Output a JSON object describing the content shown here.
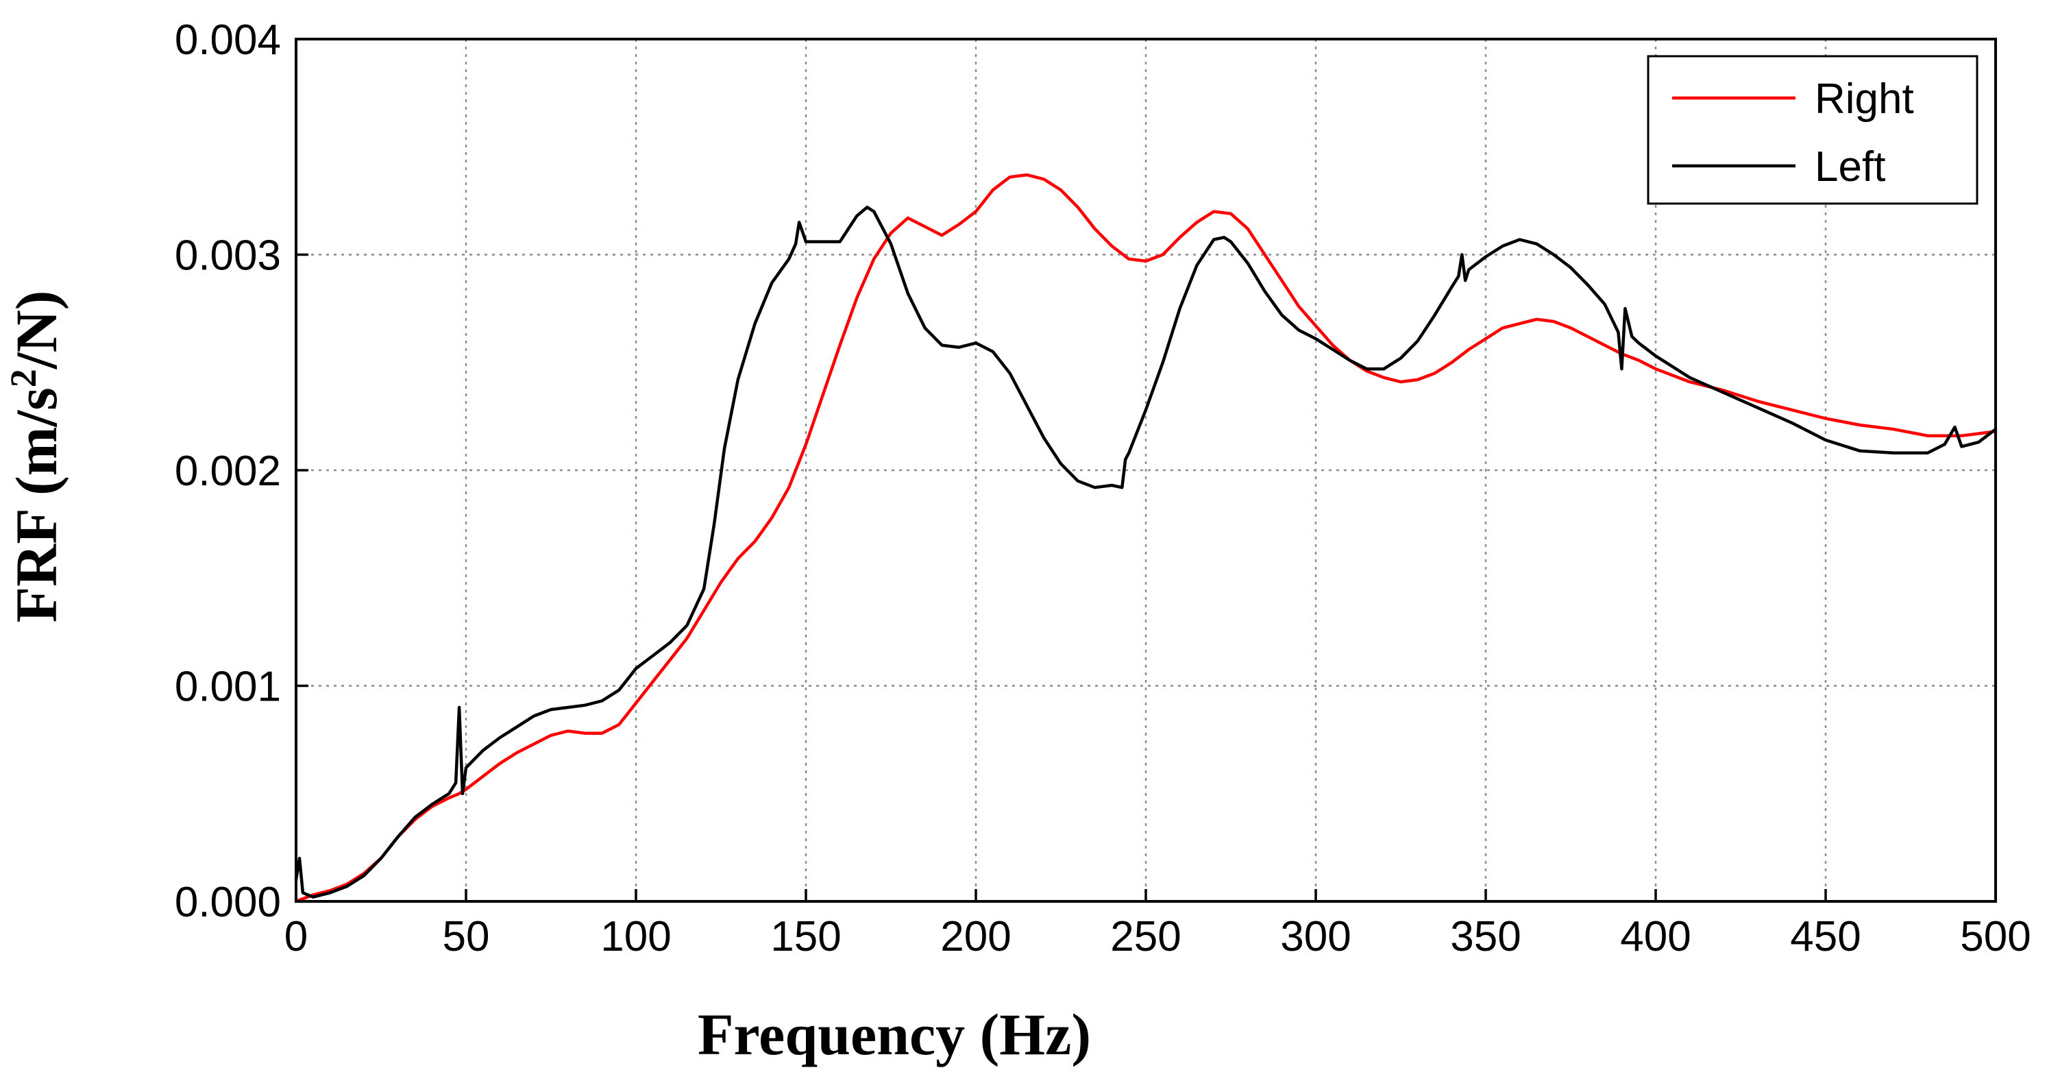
{
  "chart_data": {
    "type": "line",
    "title": "",
    "xlabel": "Frequency (Hz)",
    "ylabel": {
      "prefix": "FRF (m/s",
      "superscript": "2",
      "suffix": "/N)"
    },
    "xlim": [
      0,
      500
    ],
    "ylim": [
      0,
      0.004
    ],
    "grid": true,
    "legend_position": "top-right",
    "x_ticks": [
      {
        "value": 0,
        "label": "0"
      },
      {
        "value": 50,
        "label": "50"
      },
      {
        "value": 100,
        "label": "100"
      },
      {
        "value": 150,
        "label": "150"
      },
      {
        "value": 200,
        "label": "200"
      },
      {
        "value": 250,
        "label": "250"
      },
      {
        "value": 300,
        "label": "300"
      },
      {
        "value": 350,
        "label": "350"
      },
      {
        "value": 400,
        "label": "400"
      },
      {
        "value": 450,
        "label": "450"
      },
      {
        "value": 500,
        "label": "500"
      }
    ],
    "y_ticks": [
      {
        "value": 0,
        "label": "0.000"
      },
      {
        "value": 0.001,
        "label": "0.001"
      },
      {
        "value": 0.002,
        "label": "0.002"
      },
      {
        "value": 0.003,
        "label": "0.003"
      },
      {
        "value": 0.004,
        "label": "0.004"
      }
    ],
    "series": [
      {
        "name": "Right",
        "color": "#ff0000",
        "points": [
          [
            0,
            0.0
          ],
          [
            5,
            3e-05
          ],
          [
            10,
            5e-05
          ],
          [
            15,
            8e-05
          ],
          [
            20,
            0.00013
          ],
          [
            25,
            0.0002
          ],
          [
            30,
            0.0003
          ],
          [
            35,
            0.00038
          ],
          [
            40,
            0.00044
          ],
          [
            45,
            0.00048
          ],
          [
            48,
            0.0005
          ],
          [
            50,
            0.00052
          ],
          [
            55,
            0.00058
          ],
          [
            60,
            0.00064
          ],
          [
            65,
            0.00069
          ],
          [
            70,
            0.00073
          ],
          [
            75,
            0.00077
          ],
          [
            80,
            0.00079
          ],
          [
            85,
            0.00078
          ],
          [
            90,
            0.00078
          ],
          [
            95,
            0.00082
          ],
          [
            100,
            0.00092
          ],
          [
            105,
            0.00102
          ],
          [
            110,
            0.00112
          ],
          [
            115,
            0.00122
          ],
          [
            120,
            0.00135
          ],
          [
            125,
            0.00148
          ],
          [
            130,
            0.00159
          ],
          [
            135,
            0.00167
          ],
          [
            140,
            0.00178
          ],
          [
            145,
            0.00192
          ],
          [
            150,
            0.00212
          ],
          [
            155,
            0.00235
          ],
          [
            160,
            0.00258
          ],
          [
            165,
            0.0028
          ],
          [
            170,
            0.00298
          ],
          [
            175,
            0.0031
          ],
          [
            180,
            0.00317
          ],
          [
            185,
            0.00313
          ],
          [
            190,
            0.00309
          ],
          [
            195,
            0.00314
          ],
          [
            200,
            0.0032
          ],
          [
            205,
            0.0033
          ],
          [
            210,
            0.00336
          ],
          [
            215,
            0.00337
          ],
          [
            220,
            0.00335
          ],
          [
            225,
            0.0033
          ],
          [
            230,
            0.00322
          ],
          [
            235,
            0.00312
          ],
          [
            240,
            0.00304
          ],
          [
            245,
            0.00298
          ],
          [
            250,
            0.00297
          ],
          [
            255,
            0.003
          ],
          [
            260,
            0.00308
          ],
          [
            265,
            0.00315
          ],
          [
            270,
            0.0032
          ],
          [
            275,
            0.00319
          ],
          [
            280,
            0.00312
          ],
          [
            285,
            0.003
          ],
          [
            290,
            0.00288
          ],
          [
            295,
            0.00276
          ],
          [
            300,
            0.00267
          ],
          [
            305,
            0.00258
          ],
          [
            310,
            0.00251
          ],
          [
            315,
            0.00246
          ],
          [
            320,
            0.00243
          ],
          [
            325,
            0.00241
          ],
          [
            330,
            0.00242
          ],
          [
            335,
            0.00245
          ],
          [
            340,
            0.0025
          ],
          [
            345,
            0.00256
          ],
          [
            350,
            0.00261
          ],
          [
            355,
            0.00266
          ],
          [
            360,
            0.00268
          ],
          [
            365,
            0.0027
          ],
          [
            370,
            0.00269
          ],
          [
            375,
            0.00266
          ],
          [
            380,
            0.00262
          ],
          [
            385,
            0.00258
          ],
          [
            390,
            0.00254
          ],
          [
            395,
            0.00251
          ],
          [
            400,
            0.00247
          ],
          [
            410,
            0.00241
          ],
          [
            420,
            0.00237
          ],
          [
            430,
            0.00232
          ],
          [
            440,
            0.00228
          ],
          [
            450,
            0.00224
          ],
          [
            460,
            0.00221
          ],
          [
            470,
            0.00219
          ],
          [
            480,
            0.00216
          ],
          [
            490,
            0.00216
          ],
          [
            500,
            0.00218
          ]
        ]
      },
      {
        "name": "Left",
        "color": "#000000",
        "points": [
          [
            0,
            0.0001
          ],
          [
            1,
            0.0002
          ],
          [
            2,
            4e-05
          ],
          [
            5,
            2e-05
          ],
          [
            10,
            4e-05
          ],
          [
            15,
            7e-05
          ],
          [
            20,
            0.00012
          ],
          [
            25,
            0.0002
          ],
          [
            30,
            0.0003
          ],
          [
            35,
            0.00039
          ],
          [
            40,
            0.00045
          ],
          [
            45,
            0.0005
          ],
          [
            47,
            0.00055
          ],
          [
            48,
            0.0009
          ],
          [
            49,
            0.0005
          ],
          [
            50,
            0.00062
          ],
          [
            55,
            0.0007
          ],
          [
            60,
            0.00076
          ],
          [
            65,
            0.00081
          ],
          [
            70,
            0.00086
          ],
          [
            75,
            0.00089
          ],
          [
            80,
            0.0009
          ],
          [
            85,
            0.00091
          ],
          [
            90,
            0.00093
          ],
          [
            95,
            0.00098
          ],
          [
            100,
            0.00108
          ],
          [
            105,
            0.00114
          ],
          [
            110,
            0.0012
          ],
          [
            115,
            0.00128
          ],
          [
            120,
            0.00145
          ],
          [
            123,
            0.00175
          ],
          [
            126,
            0.0021
          ],
          [
            130,
            0.00242
          ],
          [
            135,
            0.00268
          ],
          [
            140,
            0.00287
          ],
          [
            145,
            0.00298
          ],
          [
            147,
            0.00305
          ],
          [
            148,
            0.00315
          ],
          [
            150,
            0.00306
          ],
          [
            155,
            0.00306
          ],
          [
            160,
            0.00306
          ],
          [
            165,
            0.00318
          ],
          [
            168,
            0.00322
          ],
          [
            170,
            0.0032
          ],
          [
            175,
            0.00305
          ],
          [
            180,
            0.00282
          ],
          [
            185,
            0.00266
          ],
          [
            190,
            0.00258
          ],
          [
            195,
            0.00257
          ],
          [
            200,
            0.00259
          ],
          [
            205,
            0.00255
          ],
          [
            210,
            0.00245
          ],
          [
            215,
            0.0023
          ],
          [
            220,
            0.00215
          ],
          [
            225,
            0.00203
          ],
          [
            230,
            0.00195
          ],
          [
            235,
            0.00192
          ],
          [
            240,
            0.00193
          ],
          [
            243,
            0.00192
          ],
          [
            244,
            0.00205
          ],
          [
            245,
            0.00208
          ],
          [
            250,
            0.00228
          ],
          [
            255,
            0.0025
          ],
          [
            260,
            0.00275
          ],
          [
            265,
            0.00295
          ],
          [
            270,
            0.00307
          ],
          [
            273,
            0.00308
          ],
          [
            275,
            0.00306
          ],
          [
            280,
            0.00296
          ],
          [
            285,
            0.00283
          ],
          [
            290,
            0.00272
          ],
          [
            295,
            0.00265
          ],
          [
            300,
            0.00261
          ],
          [
            305,
            0.00256
          ],
          [
            310,
            0.00251
          ],
          [
            315,
            0.00247
          ],
          [
            320,
            0.00247
          ],
          [
            325,
            0.00252
          ],
          [
            330,
            0.0026
          ],
          [
            335,
            0.00272
          ],
          [
            340,
            0.00285
          ],
          [
            342,
            0.0029
          ],
          [
            343,
            0.003
          ],
          [
            344,
            0.00288
          ],
          [
            345,
            0.00293
          ],
          [
            350,
            0.00299
          ],
          [
            355,
            0.00304
          ],
          [
            360,
            0.00307
          ],
          [
            365,
            0.00305
          ],
          [
            370,
            0.003
          ],
          [
            375,
            0.00294
          ],
          [
            380,
            0.00286
          ],
          [
            385,
            0.00277
          ],
          [
            389,
            0.00264
          ],
          [
            390,
            0.00247
          ],
          [
            391,
            0.00275
          ],
          [
            393,
            0.00262
          ],
          [
            395,
            0.00259
          ],
          [
            400,
            0.00253
          ],
          [
            405,
            0.00248
          ],
          [
            410,
            0.00243
          ],
          [
            420,
            0.00236
          ],
          [
            430,
            0.00229
          ],
          [
            440,
            0.00222
          ],
          [
            450,
            0.00214
          ],
          [
            460,
            0.00209
          ],
          [
            470,
            0.00208
          ],
          [
            480,
            0.00208
          ],
          [
            485,
            0.00212
          ],
          [
            488,
            0.0022
          ],
          [
            490,
            0.00211
          ],
          [
            495,
            0.00213
          ],
          [
            500,
            0.00219
          ]
        ]
      }
    ]
  }
}
